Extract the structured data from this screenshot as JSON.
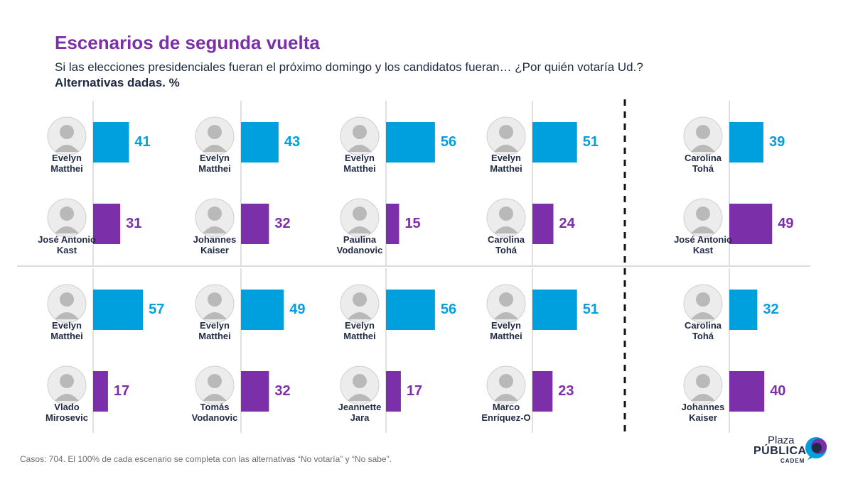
{
  "header": {
    "title": "Escenarios de segunda vuelta",
    "subtitle": "Si las elecciones presidenciales fueran el próximo domingo y los candidatos fueran… ¿Por quién votaría Ud.?",
    "subtitle2": "Alternativas dadas. %"
  },
  "footer": {
    "text": "Casos: 704. El 100% de cada escenario se completa con las alternativas “No votaría” y “No sabe”."
  },
  "logo": {
    "plaza": "Plaza",
    "publica": "PÚBLICA",
    "cadem": "CADEM"
  },
  "colors": {
    "blue": "#00a0df",
    "purple": "#7b2fa8",
    "title": "#7b2fa8",
    "text": "#1f2a44"
  },
  "chart_data": [
    {
      "type": "bar",
      "categories": [
        "Evelyn Matthei",
        "José Antonio Kast"
      ],
      "values": [
        41,
        31
      ],
      "colors": [
        "#00a0df",
        "#7b2fa8"
      ]
    },
    {
      "type": "bar",
      "categories": [
        "Evelyn Matthei",
        "Johannes Kaiser"
      ],
      "values": [
        43,
        32
      ],
      "colors": [
        "#00a0df",
        "#7b2fa8"
      ]
    },
    {
      "type": "bar",
      "categories": [
        "Evelyn Matthei",
        "Paulina Vodanovic"
      ],
      "values": [
        56,
        15
      ],
      "colors": [
        "#00a0df",
        "#7b2fa8"
      ]
    },
    {
      "type": "bar",
      "categories": [
        "Evelyn Matthei",
        "Carolina Tohá"
      ],
      "values": [
        51,
        24
      ],
      "colors": [
        "#00a0df",
        "#7b2fa8"
      ]
    },
    {
      "type": "bar",
      "categories": [
        "Carolina Tohá",
        "José Antonio Kast"
      ],
      "values": [
        39,
        49
      ],
      "colors": [
        "#00a0df",
        "#7b2fa8"
      ]
    },
    {
      "type": "bar",
      "categories": [
        "Evelyn Matthei",
        "Vlado Mirosevic"
      ],
      "values": [
        57,
        17
      ],
      "colors": [
        "#00a0df",
        "#7b2fa8"
      ]
    },
    {
      "type": "bar",
      "categories": [
        "Evelyn Matthei",
        "Tomás Vodanovic"
      ],
      "values": [
        49,
        32
      ],
      "colors": [
        "#00a0df",
        "#7b2fa8"
      ]
    },
    {
      "type": "bar",
      "categories": [
        "Evelyn Matthei",
        "Jeannette Jara"
      ],
      "values": [
        56,
        17
      ],
      "colors": [
        "#00a0df",
        "#7b2fa8"
      ]
    },
    {
      "type": "bar",
      "categories": [
        "Evelyn Matthei",
        "Marco Enríquez-O"
      ],
      "values": [
        51,
        23
      ],
      "colors": [
        "#00a0df",
        "#7b2fa8"
      ]
    },
    {
      "type": "bar",
      "categories": [
        "Carolina Tohá",
        "Johannes Kaiser"
      ],
      "values": [
        32,
        40
      ],
      "colors": [
        "#00a0df",
        "#7b2fa8"
      ]
    }
  ],
  "names": [
    [
      [
        "Evelyn",
        "Matthei"
      ],
      [
        "José Antonio",
        "Kast"
      ]
    ],
    [
      [
        "Evelyn",
        "Matthei"
      ],
      [
        "Johannes",
        "Kaiser"
      ]
    ],
    [
      [
        "Evelyn",
        "Matthei"
      ],
      [
        "Paulina",
        "Vodanovic"
      ]
    ],
    [
      [
        "Evelyn",
        "Matthei"
      ],
      [
        "Carolina",
        "Tohá"
      ]
    ],
    [
      [
        "Carolina",
        "Tohá"
      ],
      [
        "José Antonio",
        "Kast"
      ]
    ],
    [
      [
        "Evelyn",
        "Matthei"
      ],
      [
        "Vlado",
        "Mirosevic"
      ]
    ],
    [
      [
        "Evelyn",
        "Matthei"
      ],
      [
        "Tomás",
        "Vodanovic"
      ]
    ],
    [
      [
        "Evelyn",
        "Matthei"
      ],
      [
        "Jeannette",
        "Jara"
      ]
    ],
    [
      [
        "Evelyn",
        "Matthei"
      ],
      [
        "Marco",
        "Enríquez-O"
      ]
    ],
    [
      [
        "Carolina",
        "Tohá"
      ],
      [
        "Johannes",
        "Kaiser"
      ]
    ]
  ]
}
